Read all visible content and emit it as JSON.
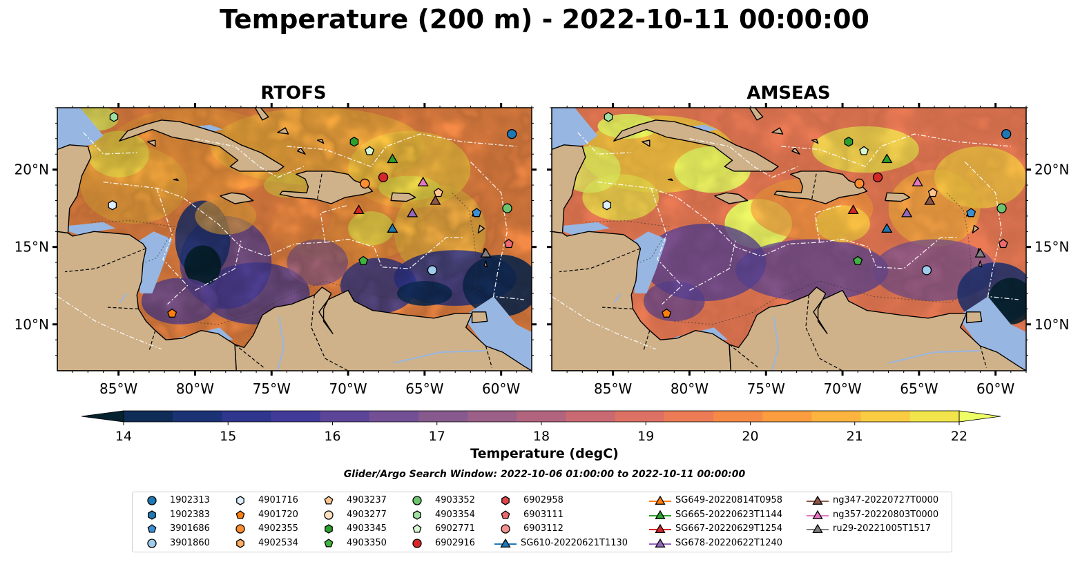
{
  "title": "Temperature (200 m) - 2022-10-11 00:00:00",
  "panels": [
    {
      "title": "RTOFS",
      "model": "rtofs"
    },
    {
      "title": "AMSEAS",
      "model": "amseas"
    }
  ],
  "map": {
    "lon_range": [
      -89,
      -58
    ],
    "lat_range": [
      7,
      24
    ],
    "lon_ticks": [
      "85°W",
      "80°W",
      "75°W",
      "70°W",
      "65°W",
      "60°W"
    ],
    "lat_ticks": [
      "20°N",
      "15°N",
      "10°N"
    ],
    "land_color": "#cfb28a",
    "ocean_color": "#97b6e2"
  },
  "colorbar": {
    "min": 14,
    "max": 22,
    "ticks": [
      "14",
      "15",
      "16",
      "17",
      "18",
      "19",
      "20",
      "21",
      "22"
    ],
    "label": "Temperature (degC)",
    "extend": "both",
    "colors": [
      "#06222f",
      "#0f2c57",
      "#1b3275",
      "#2e368d",
      "#423a99",
      "#5c4599",
      "#735096",
      "#875a8e",
      "#9c5f87",
      "#b2647e",
      "#c96a72",
      "#dc7164",
      "#eb7b55",
      "#f58a46",
      "#fb9d3f",
      "#fcb43f",
      "#f9cc42",
      "#f2e54c",
      "#eefe65"
    ]
  },
  "search_window": "Glider/Argo Search Window: 2022-10-06 01:00:00 to 2022-10-11 00:00:00",
  "legend": [
    {
      "label": "1902313",
      "marker": "circle",
      "color": "#1f77b4"
    },
    {
      "label": "1902383",
      "marker": "hexagon",
      "color": "#1f77b4"
    },
    {
      "label": "3901686",
      "marker": "pentagon",
      "color": "#3d8fd4"
    },
    {
      "label": "3901860",
      "marker": "circle",
      "color": "#9fcbed"
    },
    {
      "label": "4901716",
      "marker": "hexagon",
      "color": "#ddeeff"
    },
    {
      "label": "4901720",
      "marker": "pentagon",
      "color": "#ff7f0e"
    },
    {
      "label": "4902355",
      "marker": "circle",
      "color": "#ff8c2e"
    },
    {
      "label": "4902534",
      "marker": "hexagon",
      "color": "#ffad5f"
    },
    {
      "label": "4903237",
      "marker": "pentagon",
      "color": "#ffc58f"
    },
    {
      "label": "4903277",
      "marker": "circle",
      "color": "#ffe0c0"
    },
    {
      "label": "4903345",
      "marker": "hexagon",
      "color": "#2ca02c"
    },
    {
      "label": "4903350",
      "marker": "pentagon",
      "color": "#41b341"
    },
    {
      "label": "4903352",
      "marker": "circle",
      "color": "#6cc46c"
    },
    {
      "label": "4903354",
      "marker": "hexagon",
      "color": "#9fe09f"
    },
    {
      "label": "6902771",
      "marker": "pentagon",
      "color": "#d6f7d0"
    },
    {
      "label": "6902916",
      "marker": "circle",
      "color": "#d62728"
    },
    {
      "label": "6902958",
      "marker": "hexagon",
      "color": "#e0454a"
    },
    {
      "label": "6903111",
      "marker": "pentagon",
      "color": "#ea6a70"
    },
    {
      "label": "6903112",
      "marker": "circle",
      "color": "#f29090"
    },
    {
      "label": "SG610-20220621T1130",
      "marker": "triangle",
      "color": "#1f77b4",
      "glider": true
    },
    {
      "label": "SG649-20220814T0958",
      "marker": "triangle",
      "color": "#ff7f0e",
      "glider": true
    },
    {
      "label": "SG665-20220623T1144",
      "marker": "triangle",
      "color": "#2ca02c",
      "glider": true
    },
    {
      "label": "SG667-20220629T1254",
      "marker": "triangle",
      "color": "#d62728",
      "glider": true
    },
    {
      "label": "SG678-20220622T1240",
      "marker": "triangle",
      "color": "#9467bd",
      "glider": true
    },
    {
      "label": "ng347-20220727T0000",
      "marker": "triangle",
      "color": "#8c564b",
      "glider": true
    },
    {
      "label": "ng357-20220803T0000",
      "marker": "triangle",
      "color": "#e377c2",
      "glider": true
    },
    {
      "label": "ru29-20221005T1517",
      "marker": "triangle",
      "color": "#7f7f7f",
      "glider": true
    }
  ],
  "observations": [
    {
      "id": "1902313",
      "lon": -59.3,
      "lat": 22.3
    },
    {
      "id": "3901860",
      "lon": -64.5,
      "lat": 13.5
    },
    {
      "id": "4901716",
      "lon": -85.4,
      "lat": 17.7
    },
    {
      "id": "4901720",
      "lon": -81.5,
      "lat": 10.7
    },
    {
      "id": "4902355",
      "lon": -68.9,
      "lat": 19.1
    },
    {
      "id": "4903237",
      "lon": -64.1,
      "lat": 18.5
    },
    {
      "id": "4903345",
      "lon": -69.6,
      "lat": 21.8
    },
    {
      "id": "4903350",
      "lon": -69.0,
      "lat": 14.1
    },
    {
      "id": "4903352",
      "lon": -59.6,
      "lat": 17.5
    },
    {
      "id": "4903354",
      "lon": -85.3,
      "lat": 23.4
    },
    {
      "id": "6902771",
      "lon": -68.6,
      "lat": 21.2
    },
    {
      "id": "6902916",
      "lon": -67.7,
      "lat": 19.5
    },
    {
      "id": "6903111",
      "lon": -59.5,
      "lat": 15.2
    },
    {
      "id": "3901686",
      "lon": -61.6,
      "lat": 17.2
    },
    {
      "id": "SG610-20220621T1130",
      "lon": -67.1,
      "lat": 16.2
    },
    {
      "id": "SG665-20220623T1144",
      "lon": -67.1,
      "lat": 20.7
    },
    {
      "id": "SG667-20220629T1254",
      "lon": -69.3,
      "lat": 17.4
    },
    {
      "id": "SG678-20220622T1240",
      "lon": -65.8,
      "lat": 17.2
    },
    {
      "id": "ng347-20220727T0000",
      "lon": -64.3,
      "lat": 18.0
    },
    {
      "id": "ng357-20220803T0000",
      "lon": -65.1,
      "lat": 19.2
    },
    {
      "id": "ru29-20221005T1517",
      "lon": -61.0,
      "lat": 14.6
    }
  ]
}
